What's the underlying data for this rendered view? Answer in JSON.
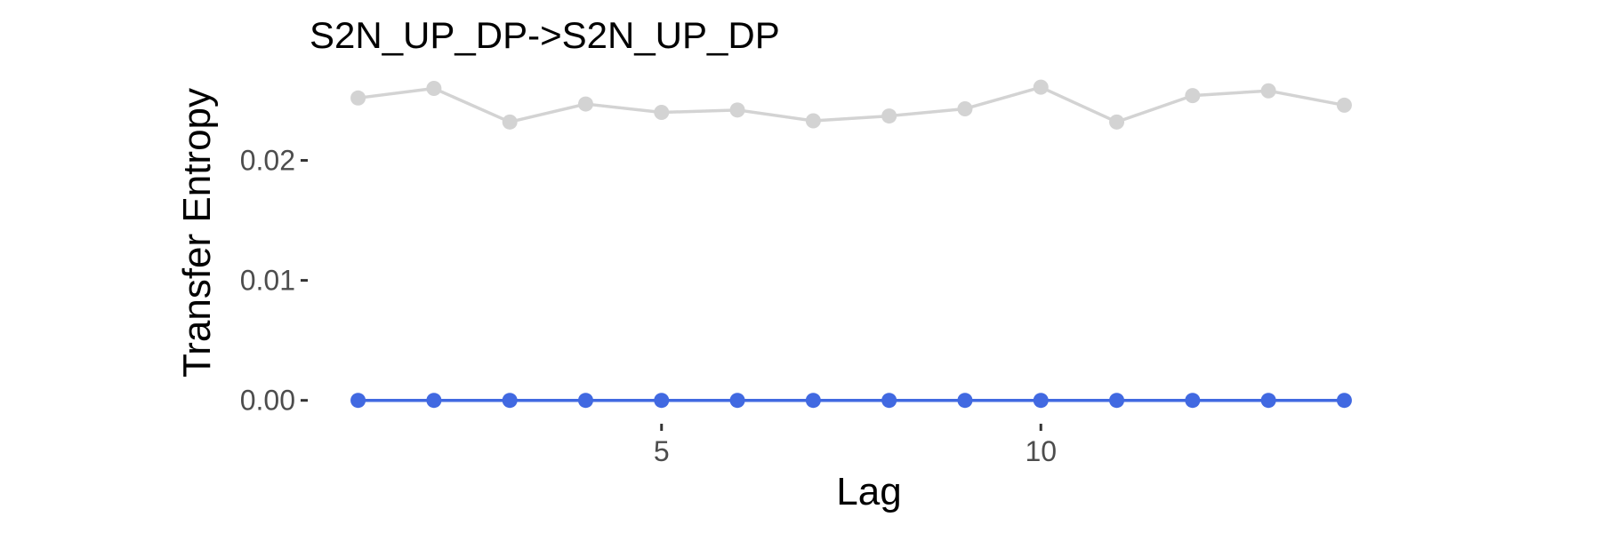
{
  "chart_data": {
    "type": "line",
    "title": "S2N_UP_DP->S2N_UP_DP",
    "xlabel": "Lag",
    "ylabel": "Transfer Entropy",
    "x": [
      1,
      2,
      3,
      4,
      5,
      6,
      7,
      8,
      9,
      10,
      11,
      12,
      13,
      14
    ],
    "xlim": [
      0.36,
      14.64
    ],
    "ylim": [
      -0.0018,
      0.027
    ],
    "xticks": [
      5,
      10
    ],
    "xtick_labels": [
      "5",
      "10"
    ],
    "yticks": [
      0.0,
      0.01,
      0.02
    ],
    "ytick_labels": [
      "0.00",
      "0.01",
      "0.02"
    ],
    "grid": false,
    "legend": "none",
    "series": [
      {
        "color": "#d3d3d3",
        "values": [
          0.0252,
          0.026,
          0.0232,
          0.0247,
          0.024,
          0.0242,
          0.0233,
          0.0237,
          0.0243,
          0.0261,
          0.0232,
          0.0254,
          0.0258,
          0.0246
        ]
      },
      {
        "color": "#4169e1",
        "values": [
          0.0,
          0.0,
          0.0,
          0.0,
          0.0,
          0.0,
          0.0,
          0.0,
          0.0,
          0.0,
          0.0,
          0.0,
          0.0,
          0.0
        ]
      }
    ]
  }
}
